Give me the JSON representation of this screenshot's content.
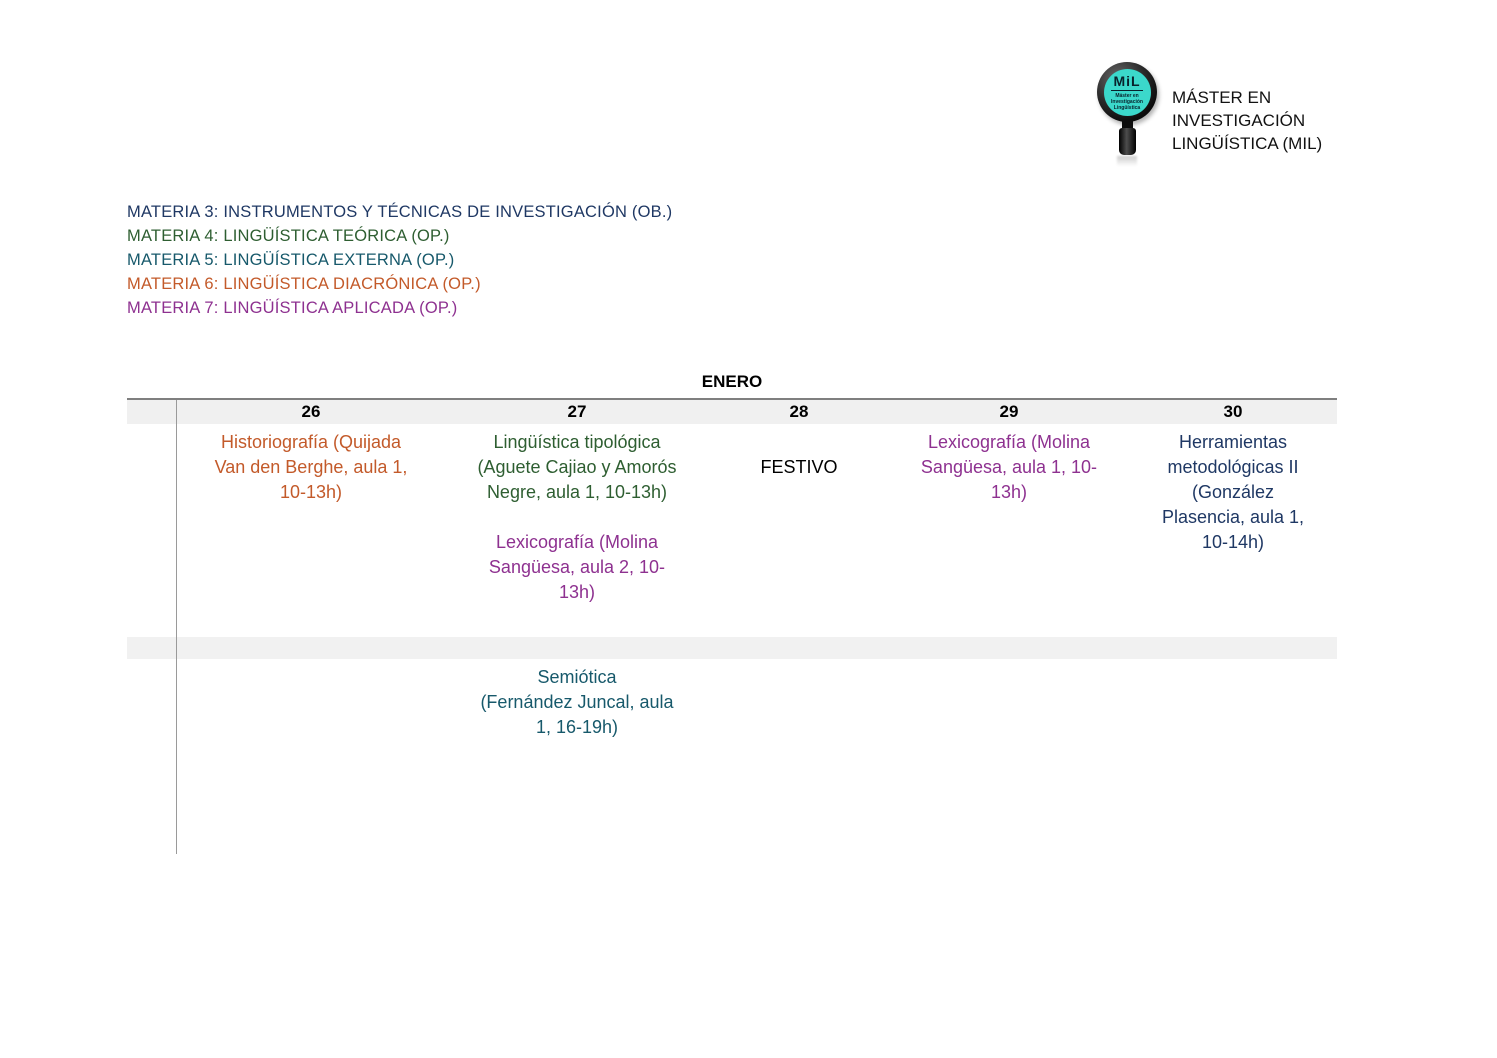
{
  "brand": {
    "logo": {
      "badge_text": "MiL",
      "badge_sub_lines": "Máster en\nInvestigación\nLingüística",
      "teal": "#3BD8CB"
    },
    "title_lines": [
      "MÁSTER EN",
      "INVESTIGACIÓN",
      "LINGÜÍSTICA (MIL)"
    ]
  },
  "legend": {
    "items": [
      {
        "label": "MATERIA 3: INSTRUMENTOS Y TÉCNICAS DE INVESTIGACIÓN (OB.)",
        "color": "#1F3864"
      },
      {
        "label": "MATERIA 4: LINGÜÍSTICA TEÓRICA (OP.)",
        "color": "#2E5E31"
      },
      {
        "label": "MATERIA 5: LINGÜÍSTICA EXTERNA (OP.)",
        "color": "#17596B"
      },
      {
        "label": "MATERIA 6: LINGÜÍSTICA DIACRÓNICA (OP.)",
        "color": "#C35A2A"
      },
      {
        "label": "MATERIA 7: LINGÜÍSTICA APLICADA (OP.)",
        "color": "#8E3190"
      }
    ]
  },
  "calendar": {
    "month_title": "ENERO",
    "day_headers": [
      "26",
      "27",
      "28",
      "29",
      "30"
    ],
    "grid_colors": {
      "header_bg": "#f0f0f0",
      "band_bg": "#f1f1f1",
      "top_border": "#7f7f7f",
      "gutter_line": "#9a9a9a"
    },
    "rows": {
      "morning": {
        "day26": {
          "text": "Historiografía (Quijada\nVan den Berghe, aula 1,\n10-13h)",
          "color": "#C35A2A"
        },
        "day27_first": {
          "text": "Lingüística tipológica\n(Aguete Cajiao y Amorós\nNegre, aula 1, 10-13h)",
          "color": "#2E5E31"
        },
        "day27_second": {
          "text": "Lexicografía (Molina\nSangüesa, aula 2, 10-\n13h)",
          "color": "#8E3190"
        },
        "day28": {
          "text": "FESTIVO",
          "color": "#000000"
        },
        "day29": {
          "text": "Lexicografía (Molina\nSangüesa, aula 1, 10-\n13h)",
          "color": "#8E3190"
        },
        "day30": {
          "text": "Herramientas\nmetodológicas II\n(González\nPlasencia, aula 1,\n10-14h)",
          "color": "#1F3864"
        }
      },
      "afternoon": {
        "day27": {
          "text": "Semiótica\n(Fernández Juncal, aula\n1, 16-19h)",
          "color": "#17596B"
        }
      }
    }
  }
}
